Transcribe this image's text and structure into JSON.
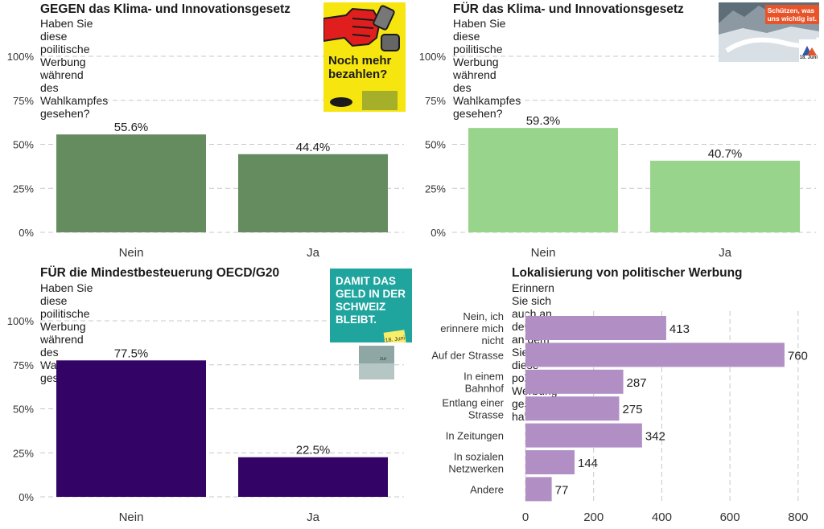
{
  "charts": [
    {
      "title": "GEGEN das Klima- und Innovationsgesetz",
      "subtitle": "Haben Sie diese poilitische Werbung während\ndes Wahlkampfes gesehen?",
      "chart_data": {
        "type": "bar",
        "categories": [
          "Nein",
          "Ja"
        ],
        "values": [
          55.6,
          44.4
        ],
        "value_labels": [
          "55.6%",
          "44.4%"
        ],
        "yticks": [
          "0%",
          "25%",
          "50%",
          "75%",
          "100%"
        ],
        "ylim": [
          0,
          100
        ],
        "color": "#648c5e"
      }
    },
    {
      "title": "FÜR das Klima- und Innovationsgesetz",
      "subtitle": "Haben Sie diese poilitische Werbung während\ndes Wahlkampfes gesehen?",
      "chart_data": {
        "type": "bar",
        "categories": [
          "Nein",
          "Ja"
        ],
        "values": [
          59.3,
          40.7
        ],
        "value_labels": [
          "59.3%",
          "40.7%"
        ],
        "yticks": [
          "0%",
          "25%",
          "50%",
          "75%",
          "100%"
        ],
        "ylim": [
          0,
          100
        ],
        "color": "#98d48c"
      }
    },
    {
      "title": "FÜR die Mindestbesteuerung OECD/G20",
      "subtitle": "Haben Sie diese poilitische Werbung während\ndes Wahlkampfes gesehen?",
      "chart_data": {
        "type": "bar",
        "categories": [
          "Nein",
          "Ja"
        ],
        "values": [
          77.5,
          22.5
        ],
        "value_labels": [
          "77.5%",
          "22.5%"
        ],
        "yticks": [
          "0%",
          "25%",
          "50%",
          "75%",
          "100%"
        ],
        "ylim": [
          0,
          100
        ],
        "color": "#330466"
      }
    }
  ],
  "hbar": {
    "title": "Lokalisierung von politischer Werbung",
    "subtitle": "Erinnern Sie sich auch an den Ort, an dem Sie\ndiese politische Werbung gesehen haben?",
    "chart_data": {
      "type": "bar",
      "orientation": "horizontal",
      "categories": [
        "Nein, ich\nerinnere mich\nnicht",
        "Auf der Strasse",
        "In einem\nBahnhof",
        "Entlang einer\nStrasse",
        "In Zeitungen",
        "In sozialen\nNetzwerken",
        "Andere"
      ],
      "values": [
        413,
        760,
        287,
        275,
        342,
        144,
        77
      ],
      "xticks": [
        0,
        200,
        400,
        600,
        800
      ],
      "xlim": [
        0,
        850
      ],
      "color": "#b18fc5"
    }
  },
  "posters": {
    "p1": {
      "text": "Noch mehr\nbezahlen?",
      "colors": {
        "bg": "#f6e50f",
        "accent": "#e01e1e"
      }
    },
    "p2": {
      "text": "Schützen, was\nuns wichtig ist.",
      "date": "18. Juni",
      "colors": {
        "badge": "#e8542a"
      }
    },
    "p3": {
      "text": "DAMIT DAS\nGELD IN DER\nSCHWEIZ\nBLEIBT.",
      "note": "18. Juni",
      "small": "zur",
      "colors": {
        "bg": "#1fa59e"
      }
    }
  }
}
